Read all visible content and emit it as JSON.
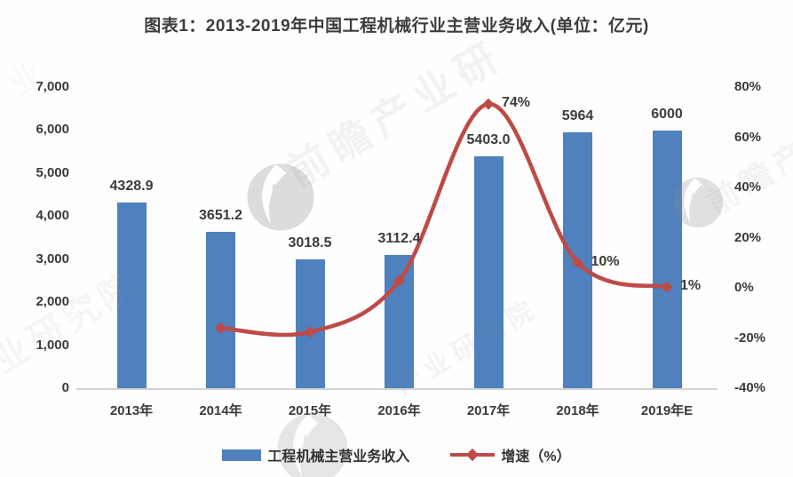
{
  "title": "图表1：2013-2019年中国工程机械行业主营业务收入(单位：亿元)",
  "chart_data": {
    "type": "bar",
    "subtype": "bar-line-combo",
    "categories": [
      "2013年",
      "2014年",
      "2015年",
      "2016年",
      "2017年",
      "2018年",
      "2019年E"
    ],
    "series": [
      {
        "name": "工程机械主营业务收入",
        "type": "bar",
        "axis": "left",
        "color": "#4E81BD",
        "values": [
          4328.9,
          3651.2,
          3018.5,
          3112.4,
          5403.0,
          5964,
          6000
        ],
        "labels": [
          "4328.9",
          "3651.2",
          "3018.5",
          "3112.4",
          "5403.0",
          "5964",
          "6000"
        ]
      },
      {
        "name": "增速（%）",
        "type": "line",
        "axis": "right",
        "color": "#BE4B48",
        "values": [
          null,
          -15.7,
          -17.3,
          3.1,
          73.6,
          10.4,
          0.6
        ],
        "point_labels": [
          null,
          null,
          null,
          null,
          "74%",
          "10%",
          "1%"
        ]
      }
    ],
    "left_axis": {
      "min": 0,
      "max": 7000,
      "tick_step": 1000,
      "tick_labels": [
        "0",
        "1,000",
        "2,000",
        "3,000",
        "4,000",
        "5,000",
        "6,000",
        "7,000"
      ]
    },
    "right_axis": {
      "min": -40,
      "max": 80,
      "tick_step": 20,
      "tick_labels": [
        "-40%",
        "-20%",
        "0%",
        "20%",
        "40%",
        "60%",
        "80%"
      ]
    },
    "grid": false,
    "legend_position": "bottom"
  },
  "watermark": {
    "brand": "前瞻产业研究院",
    "fragments": [
      "前瞻产业研",
      "前瞻产",
      "业研究院",
      "产业研究院",
      "业"
    ],
    "color": "#969696"
  }
}
